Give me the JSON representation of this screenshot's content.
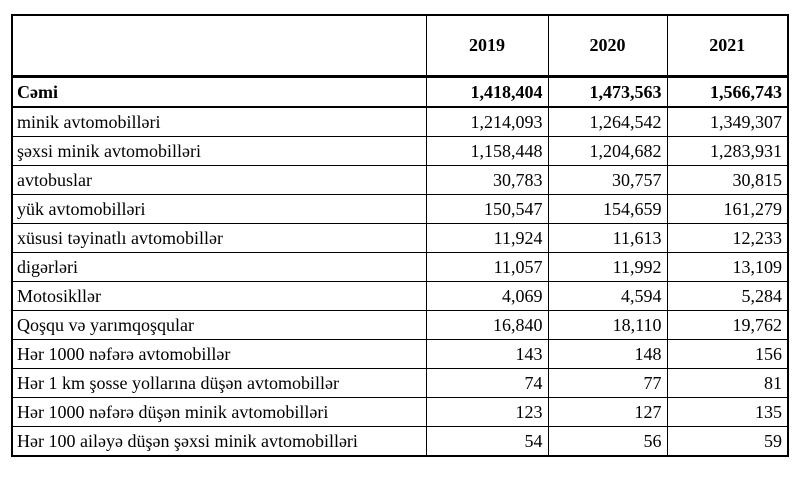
{
  "table": {
    "header": {
      "corner": "",
      "years": [
        "2019",
        "2020",
        "2021"
      ]
    },
    "rows": [
      {
        "label": "Cəmi",
        "values": [
          "1,418,404",
          "1,473,563",
          "1,566,743"
        ],
        "bold": true
      },
      {
        "label": "minik avtomobilləri",
        "values": [
          "1,214,093",
          "1,264,542",
          "1,349,307"
        ],
        "bold": false
      },
      {
        "label": "şəxsi minik avtomobilləri",
        "values": [
          "1,158,448",
          "1,204,682",
          "1,283,931"
        ],
        "bold": false
      },
      {
        "label": "avtobuslar",
        "values": [
          "30,783",
          "30,757",
          "30,815"
        ],
        "bold": false
      },
      {
        "label": "yük avtomobilləri",
        "values": [
          "150,547",
          "154,659",
          "161,279"
        ],
        "bold": false
      },
      {
        "label": "xüsusi təyinatlı avtomobillər",
        "values": [
          "11,924",
          "11,613",
          "12,233"
        ],
        "bold": false
      },
      {
        "label": "digərləri",
        "values": [
          "11,057",
          "11,992",
          "13,109"
        ],
        "bold": false
      },
      {
        "label": "Motosikllər",
        "values": [
          "4,069",
          "4,594",
          "5,284"
        ],
        "bold": false
      },
      {
        "label": "Qoşqu və yarımqoşqular",
        "values": [
          "16,840",
          "18,110",
          "19,762"
        ],
        "bold": false
      },
      {
        "label": "Hər 1000 nəfərə avtomobillər",
        "values": [
          "143",
          "148",
          "156"
        ],
        "bold": false
      },
      {
        "label": "Hər 1 km şosse yollarına düşən avtomobillər",
        "values": [
          "74",
          "77",
          "81"
        ],
        "bold": false
      },
      {
        "label": "Hər 1000 nəfərə düşən minik avtomobilləri",
        "values": [
          "123",
          "127",
          "135"
        ],
        "bold": false
      },
      {
        "label": "Hər 100 ailəyə düşən şəxsi minik avtomobilləri",
        "values": [
          "54",
          "56",
          "59"
        ],
        "bold": false
      }
    ],
    "border_color": "#000000",
    "text_color": "#000000",
    "background_color": "#ffffff"
  },
  "chart_data": {
    "type": "table",
    "title": "",
    "columns": [
      "2019",
      "2020",
      "2021"
    ],
    "rows": [
      {
        "label": "Cəmi",
        "values": [
          1418404,
          1473563,
          1566743
        ]
      },
      {
        "label": "minik avtomobilləri",
        "values": [
          1214093,
          1264542,
          1349307
        ]
      },
      {
        "label": "şəxsi minik avtomobilləri",
        "values": [
          1158448,
          1204682,
          1283931
        ]
      },
      {
        "label": "avtobuslar",
        "values": [
          30783,
          30757,
          30815
        ]
      },
      {
        "label": "yük avtomobilləri",
        "values": [
          150547,
          154659,
          161279
        ]
      },
      {
        "label": "xüsusi təyinatlı avtomobillər",
        "values": [
          11924,
          11613,
          12233
        ]
      },
      {
        "label": "digərləri",
        "values": [
          11057,
          11992,
          13109
        ]
      },
      {
        "label": "Motosikllər",
        "values": [
          4069,
          4594,
          5284
        ]
      },
      {
        "label": "Qoşqu və yarımqoşqular",
        "values": [
          16840,
          18110,
          19762
        ]
      },
      {
        "label": "Hər 1000 nəfərə avtomobillər",
        "values": [
          143,
          148,
          156
        ]
      },
      {
        "label": "Hər 1 km şosse yollarına düşən avtomobillər",
        "values": [
          74,
          77,
          81
        ]
      },
      {
        "label": "Hər 1000 nəfərə düşən minik avtomobilləri",
        "values": [
          123,
          127,
          135
        ]
      },
      {
        "label": "Hər 100 ailəyə düşən şəxsi minik avtomobilləri",
        "values": [
          54,
          56,
          59
        ]
      }
    ]
  }
}
